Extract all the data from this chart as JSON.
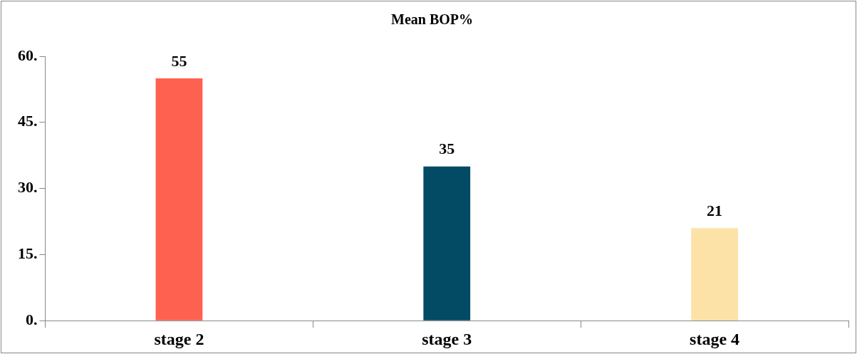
{
  "chart_data": {
    "type": "bar",
    "title": "Mean BOP%",
    "categories": [
      "stage 2",
      "stage 3",
      "stage 4"
    ],
    "values": [
      55,
      35,
      21
    ],
    "colors": [
      "#ff6150",
      "#034a64",
      "#fde2a8"
    ],
    "ylim": [
      0,
      60
    ],
    "yticks": [
      {
        "value": 0,
        "label": "0."
      },
      {
        "value": 15,
        "label": "15."
      },
      {
        "value": 30,
        "label": "30."
      },
      {
        "value": 45,
        "label": "45."
      },
      {
        "value": 60,
        "label": "60."
      }
    ],
    "data_labels": true,
    "grid": false,
    "legend": false
  }
}
